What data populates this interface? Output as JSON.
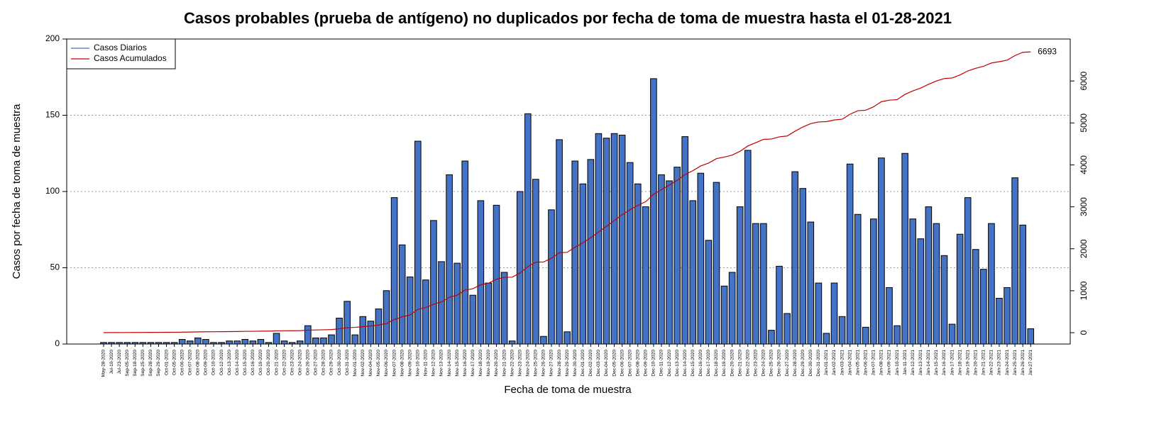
{
  "chart_data": {
    "type": "bar",
    "title": "Casos probables (prueba de antígeno) no duplicados por fecha de toma de muestra hasta el 01-28-2021",
    "x_label": "Fecha de toma de muestra",
    "y_label": "Casos por fecha de toma de muestra",
    "categories": [
      "May-28-2020",
      "Jul-10-2020",
      "Jul-23-2020",
      "Sep-05-2020",
      "Sep-18-2020",
      "Sep-25-2020",
      "Sep-28-2020",
      "Sep-29-2020",
      "Oct-01-2020",
      "Oct-05-2020",
      "Oct-06-2020",
      "Oct-07-2020",
      "Oct-08-2020",
      "Oct-09-2020",
      "Oct-10-2020",
      "Oct-12-2020",
      "Oct-13-2020",
      "Oct-14-2020",
      "Oct-15-2020",
      "Oct-16-2020",
      "Oct-19-2020",
      "Oct-20-2020",
      "Oct-21-2020",
      "Oct-22-2020",
      "Oct-23-2020",
      "Oct-24-2020",
      "Oct-26-2020",
      "Oct-27-2020",
      "Oct-28-2020",
      "Oct-29-2020",
      "Oct-30-2020",
      "Oct-31-2020",
      "Nov-01-2020",
      "Nov-02-2020",
      "Nov-04-2020",
      "Nov-05-2020",
      "Nov-06-2020",
      "Nov-07-2020",
      "Nov-08-2020",
      "Nov-09-2020",
      "Nov-10-2020",
      "Nov-11-2020",
      "Nov-12-2020",
      "Nov-13-2020",
      "Nov-14-2020",
      "Nov-15-2020",
      "Nov-16-2020",
      "Nov-17-2020",
      "Nov-18-2020",
      "Nov-19-2020",
      "Nov-20-2020",
      "Nov-21-2020",
      "Nov-22-2020",
      "Nov-23-2020",
      "Nov-24-2020",
      "Nov-25-2020",
      "Nov-26-2020",
      "Nov-27-2020",
      "Nov-28-2020",
      "Nov-29-2020",
      "Nov-30-2020",
      "Dec-01-2020",
      "Dec-02-2020",
      "Dec-03-2020",
      "Dec-04-2020",
      "Dec-05-2020",
      "Dec-06-2020",
      "Dec-07-2020",
      "Dec-08-2020",
      "Dec-09-2020",
      "Dec-10-2020",
      "Dec-11-2020",
      "Dec-12-2020",
      "Dec-13-2020",
      "Dec-14-2020",
      "Dec-15-2020",
      "Dec-16-2020",
      "Dec-17-2020",
      "Dec-18-2020",
      "Dec-19-2020",
      "Dec-20-2020",
      "Dec-21-2020",
      "Dec-22-2020",
      "Dec-23-2020",
      "Dec-24-2020",
      "Dec-25-2020",
      "Dec-26-2020",
      "Dec-27-2020",
      "Dec-28-2020",
      "Dec-29-2020",
      "Dec-30-2020",
      "Dec-31-2020",
      "Jan-01-2021",
      "Jan-02-2021",
      "Jan-03-2021",
      "Jan-04-2021",
      "Jan-05-2021",
      "Jan-06-2021",
      "Jan-07-2021",
      "Jan-08-2021",
      "Jan-09-2021",
      "Jan-10-2021",
      "Jan-11-2021",
      "Jan-12-2021",
      "Jan-13-2021",
      "Jan-14-2021",
      "Jan-15-2021",
      "Jan-16-2021",
      "Jan-17-2021",
      "Jan-18-2021",
      "Jan-19-2021",
      "Jan-20-2021",
      "Jan-21-2021",
      "Jan-22-2021",
      "Jan-23-2021",
      "Jan-24-2021",
      "Jan-25-2021",
      "Jan-26-2021",
      "Jan-27-2021"
    ],
    "series": [
      {
        "name": "Casos Diarios",
        "color": "#4472c4",
        "values": [
          1,
          1,
          1,
          1,
          1,
          1,
          1,
          1,
          1,
          1,
          3,
          2,
          4,
          3,
          1,
          1,
          2,
          2,
          3,
          2,
          3,
          1,
          7,
          2,
          1,
          2,
          12,
          4,
          4,
          6,
          17,
          28,
          6,
          18,
          15,
          23,
          35,
          96,
          65,
          44,
          133,
          42,
          81,
          54,
          111,
          53,
          120,
          32,
          94,
          40,
          91,
          47,
          2,
          100,
          151,
          108,
          5,
          88,
          134,
          8,
          120,
          105,
          121,
          138,
          135,
          138,
          137,
          119,
          105,
          90,
          174,
          111,
          107,
          116,
          136,
          94,
          112,
          68,
          106,
          38,
          47,
          90,
          127,
          79,
          79,
          9,
          51,
          20,
          113,
          102,
          80,
          40,
          7,
          40,
          18,
          118,
          85,
          11,
          82,
          122,
          37,
          12,
          125,
          82,
          69,
          90,
          79,
          58,
          13,
          72,
          96,
          62,
          49,
          79,
          30,
          37,
          109,
          78,
          10
        ]
      },
      {
        "name": "Casos Acumulados",
        "color": "#c00000",
        "axis": "y2",
        "values": [
          1,
          2,
          3,
          4,
          5,
          6,
          7,
          8,
          9,
          10,
          13,
          15,
          19,
          22,
          23,
          24,
          26,
          28,
          31,
          33,
          36,
          37,
          44,
          46,
          47,
          49,
          61,
          65,
          69,
          75,
          92,
          120,
          126,
          144,
          159,
          182,
          217,
          313,
          378,
          422,
          555,
          597,
          678,
          732,
          843,
          896,
          1016,
          1048,
          1142,
          1182,
          1273,
          1320,
          1322,
          1422,
          1573,
          1681,
          1686,
          1774,
          1908,
          1916,
          2036,
          2141,
          2262,
          2400,
          2535,
          2673,
          2810,
          2929,
          3034,
          3124,
          3298,
          3409,
          3516,
          3632,
          3768,
          3862,
          3974,
          4042,
          4148,
          4186,
          4233,
          4323,
          4450,
          4529,
          4608,
          4617,
          4668,
          4688,
          4801,
          4903,
          4983,
          5023,
          5030,
          5070,
          5088,
          5206,
          5291,
          5302,
          5384,
          5506,
          5543,
          5555,
          5680,
          5762,
          5831,
          5921,
          6000,
          6058,
          6071,
          6143,
          6239,
          6301,
          6350,
          6429,
          6459,
          6496,
          6605,
          6683,
          6693
        ]
      }
    ],
    "ylim": [
      0,
      200
    ],
    "yticks": [
      0,
      50,
      100,
      150,
      200
    ],
    "y2lim": [
      -270,
      7000
    ],
    "y2ticks": [
      0,
      1000,
      2000,
      3000,
      4000,
      5000,
      6000
    ],
    "grid": true,
    "legend": "top-left"
  }
}
